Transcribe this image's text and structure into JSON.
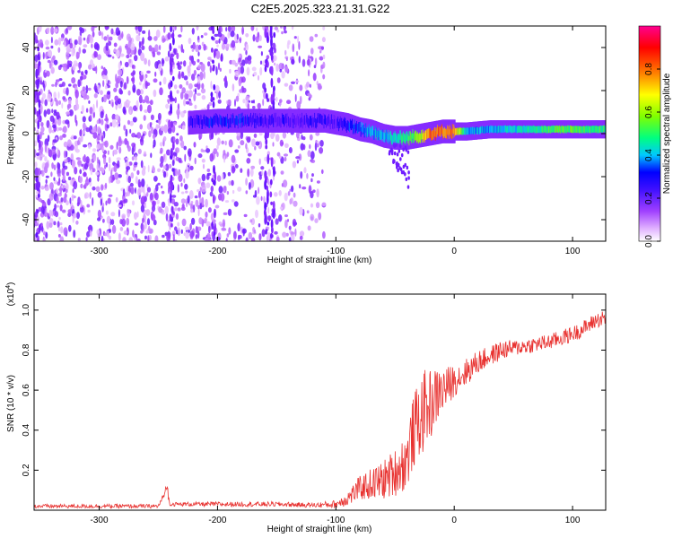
{
  "figure_title": "C2E5.2025.323.21.31.G22",
  "chart_data": [
    {
      "type": "heatmap",
      "name": "spectrogram",
      "xlabel": "Height of straight line (km)",
      "ylabel": "Frequency (Hz)",
      "xlim": [
        -355,
        128
      ],
      "ylim": [
        -50,
        50
      ],
      "xticks": [
        -300,
        -200,
        -100,
        0,
        100
      ],
      "yticks": [
        -40,
        -20,
        0,
        20,
        40
      ],
      "colorbar": {
        "label": "Normalized spectral amplitude",
        "range": [
          0,
          1
        ],
        "ticks": [
          0.0,
          0.2,
          0.4,
          0.6,
          0.8
        ],
        "colormap": [
          "#ffffff",
          "#e0b0ff",
          "#a040ff",
          "#6010ff",
          "#0000ff",
          "#00c8ff",
          "#00ff80",
          "#80ff00",
          "#ffff00",
          "#ff8000",
          "#ff0000",
          "#ff00a0"
        ]
      },
      "signal_track": {
        "x": [
          -225,
          -200,
          -180,
          -160,
          -140,
          -120,
          -110,
          -100,
          -90,
          -80,
          -70,
          -60,
          -50,
          -40,
          -30,
          -20,
          -10,
          0,
          10,
          30,
          60,
          90,
          128
        ],
        "frequency": [
          5,
          6,
          6,
          6,
          6,
          6,
          6,
          5,
          4,
          2,
          1,
          -1,
          -2,
          -2,
          -1,
          0,
          1,
          1,
          1,
          2,
          2,
          2,
          2
        ],
        "amplitude": [
          0.3,
          0.35,
          0.35,
          0.3,
          0.3,
          0.3,
          0.3,
          0.3,
          0.35,
          0.4,
          0.45,
          0.45,
          0.5,
          0.55,
          0.65,
          0.85,
          0.8,
          0.8,
          0.45,
          0.45,
          0.5,
          0.6,
          0.55
        ]
      },
      "noise_region_x": [
        -355,
        -110
      ]
    },
    {
      "type": "line",
      "name": "snr",
      "xlabel": "Height of straight line (km)",
      "ylabel": "SNR (10 * v/v)",
      "ylabel_scale": "(x10",
      "ylabel_scale_exp": "4",
      "ylabel_scale_close": ")",
      "xlim": [
        -355,
        128
      ],
      "ylim": [
        0,
        1.08
      ],
      "xticks": [
        -300,
        -200,
        -100,
        0,
        100
      ],
      "yticks": [
        0.2,
        0.4,
        0.6,
        0.8,
        1.0
      ],
      "line_color": "#e8312f",
      "series": [
        {
          "x": [
            -355,
            -300,
            -250,
            -243,
            -240,
            -200,
            -150,
            -120,
            -100,
            -90,
            -80,
            -70,
            -60,
            -50,
            -40,
            -35,
            -30,
            -25,
            -20,
            -15,
            -10,
            -5,
            0,
            10,
            20,
            30,
            40,
            50,
            60,
            70,
            80,
            90,
            100,
            110,
            120,
            128
          ],
          "values": [
            0.02,
            0.02,
            0.02,
            0.1,
            0.03,
            0.03,
            0.03,
            0.025,
            0.03,
            0.06,
            0.11,
            0.13,
            0.15,
            0.19,
            0.25,
            0.38,
            0.45,
            0.5,
            0.53,
            0.57,
            0.6,
            0.62,
            0.65,
            0.69,
            0.74,
            0.77,
            0.8,
            0.81,
            0.82,
            0.83,
            0.84,
            0.86,
            0.88,
            0.91,
            0.95,
            0.96
          ],
          "spread": [
            0.01,
            0.01,
            0.01,
            0.02,
            0.01,
            0.012,
            0.012,
            0.012,
            0.02,
            0.04,
            0.06,
            0.08,
            0.1,
            0.12,
            0.15,
            0.18,
            0.2,
            0.2,
            0.18,
            0.14,
            0.12,
            0.1,
            0.08,
            0.07,
            0.06,
            0.05,
            0.05,
            0.04,
            0.04,
            0.04,
            0.04,
            0.04,
            0.04,
            0.04,
            0.04,
            0.04
          ]
        }
      ]
    }
  ]
}
